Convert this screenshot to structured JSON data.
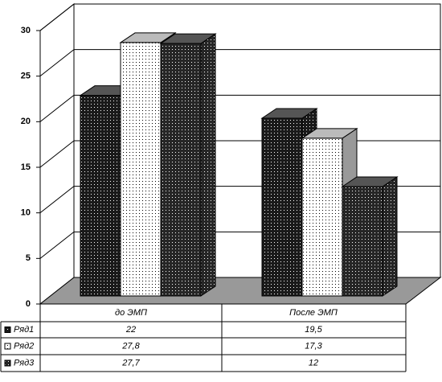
{
  "chart_data": {
    "type": "bar3d",
    "categories": [
      "до ЭМП",
      "После ЭМП"
    ],
    "series": [
      {
        "name": "Ряд1",
        "color": "#1a1a1a",
        "values": [
          22,
          19.5
        ],
        "value_labels": [
          "22",
          "19,5"
        ]
      },
      {
        "name": "Ряд2",
        "color": "#ffffff",
        "values": [
          27.8,
          17.3
        ],
        "value_labels": [
          "27,8",
          "17,3"
        ]
      },
      {
        "name": "Ряд3",
        "color": "#262626",
        "values": [
          27.7,
          12
        ],
        "value_labels": [
          "27,7",
          "12"
        ]
      }
    ],
    "ylim": [
      0,
      30
    ],
    "yticks": [
      0,
      5,
      10,
      15,
      20,
      25,
      30
    ],
    "grid": true
  }
}
